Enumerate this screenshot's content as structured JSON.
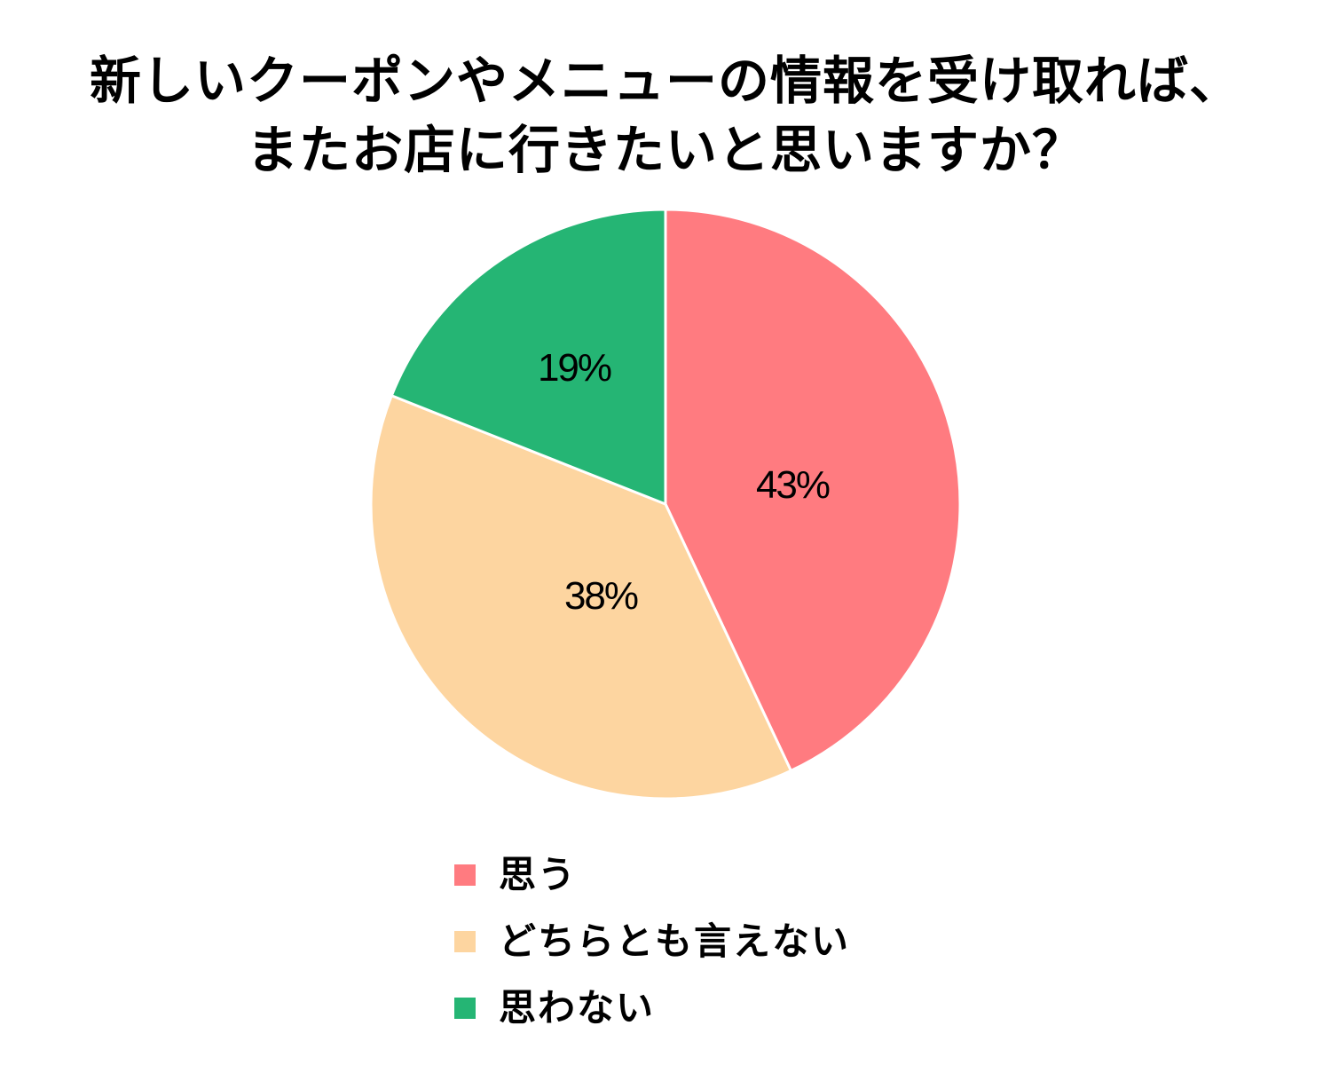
{
  "title": {
    "line1": "新しいクーポンやメニューの情報を受け取れば、",
    "line2": "またお店に行きたいと思いますか？"
  },
  "legend": {
    "items": [
      {
        "label": "思う",
        "color": "#FF7B80"
      },
      {
        "label": "どちらとも言えない",
        "color": "#FDD5A0"
      },
      {
        "label": "思わない",
        "color": "#25B574"
      }
    ]
  },
  "labels": {
    "s0": "43%",
    "s1": "38%",
    "s2": "19%"
  },
  "chart_data": {
    "type": "pie",
    "title": "新しいクーポンやメニューの情報を受け取れば、またお店に行きたいと思いますか？",
    "categories": [
      "思う",
      "どちらとも言えない",
      "思わない"
    ],
    "values": [
      43,
      38,
      19
    ],
    "unit": "%",
    "colors": [
      "#FF7B80",
      "#FDD5A0",
      "#25B574"
    ],
    "start_angle": "12 o'clock",
    "direction": "clockwise",
    "legend_position": "bottom"
  }
}
